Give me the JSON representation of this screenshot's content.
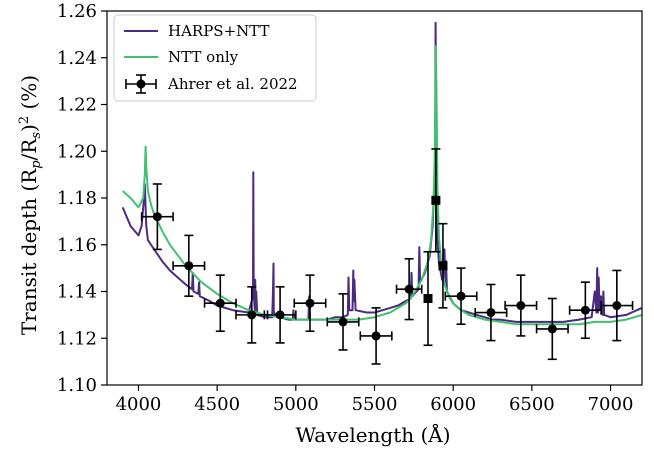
{
  "chart_data": {
    "type": "line",
    "xlabel": "Wavelength (Å)",
    "ylabel": "Transit depth (Rp/Rs)2 (%)",
    "ylabel_parts": {
      "prefix": "Transit depth (R",
      "sub_p": "p",
      "slash": "/R",
      "sub_s": "s",
      "close": ")",
      "sup": "2",
      "suffix": " (%)"
    },
    "xlim": [
      3800,
      7200
    ],
    "ylim": [
      1.1,
      1.26
    ],
    "xticks": [
      4000,
      4500,
      5000,
      5500,
      6000,
      6500,
      7000
    ],
    "yticks": [
      1.1,
      1.12,
      1.14,
      1.16,
      1.18,
      1.2,
      1.22,
      1.24,
      1.26
    ],
    "ytick_labels": [
      "1.10",
      "1.12",
      "1.14",
      "1.16",
      "1.18",
      "1.20",
      "1.22",
      "1.24",
      "1.26"
    ],
    "legend_position": "upper left",
    "series": [
      {
        "name": "HARPS+NTT",
        "kind": "line",
        "color": "#4b2a7f",
        "x": [
          3900,
          3950,
          4000,
          4020,
          4035,
          4040,
          4045,
          4050,
          4060,
          4100,
          4150,
          4200,
          4250,
          4300,
          4340,
          4345,
          4350,
          4380,
          4385,
          4390,
          4450,
          4500,
          4600,
          4700,
          4728,
          4730,
          4732,
          4740,
          4742,
          4745,
          4748,
          4755,
          4800,
          4850,
          4855,
          4858,
          4860,
          4900,
          4950,
          4980,
          4985,
          4990,
          5000,
          5050,
          5080,
          5085,
          5090,
          5100,
          5150,
          5200,
          5250,
          5300,
          5330,
          5335,
          5340,
          5360,
          5365,
          5368,
          5372,
          5380,
          5450,
          5500,
          5550,
          5600,
          5650,
          5700,
          5730,
          5735,
          5740,
          5780,
          5785,
          5790,
          5820,
          5850,
          5870,
          5885,
          5888,
          5892,
          5895,
          5900,
          5910,
          5930,
          5940,
          5945,
          5950,
          5955,
          5960,
          6000,
          6050,
          6100,
          6150,
          6200,
          6250,
          6300,
          6400,
          6500,
          6600,
          6700,
          6800,
          6880,
          6900,
          6910,
          6915,
          6920,
          6925,
          6930,
          6940,
          6950,
          6955,
          6960,
          7000,
          7100,
          7200
        ],
        "y": [
          1.176,
          1.168,
          1.164,
          1.168,
          1.18,
          1.186,
          1.176,
          1.168,
          1.162,
          1.158,
          1.153,
          1.149,
          1.146,
          1.143,
          1.141,
          1.148,
          1.14,
          1.139,
          1.144,
          1.138,
          1.136,
          1.134,
          1.132,
          1.131,
          1.138,
          1.191,
          1.14,
          1.131,
          1.145,
          1.133,
          1.14,
          1.13,
          1.129,
          1.129,
          1.14,
          1.152,
          1.131,
          1.129,
          1.128,
          1.128,
          1.132,
          1.128,
          1.128,
          1.128,
          1.128,
          1.138,
          1.128,
          1.128,
          1.128,
          1.128,
          1.129,
          1.129,
          1.13,
          1.146,
          1.132,
          1.132,
          1.149,
          1.136,
          1.145,
          1.132,
          1.131,
          1.131,
          1.132,
          1.133,
          1.134,
          1.136,
          1.137,
          1.148,
          1.138,
          1.141,
          1.159,
          1.144,
          1.148,
          1.155,
          1.168,
          1.196,
          1.255,
          1.22,
          1.175,
          1.162,
          1.152,
          1.145,
          1.148,
          1.158,
          1.144,
          1.153,
          1.14,
          1.135,
          1.132,
          1.131,
          1.13,
          1.129,
          1.128,
          1.128,
          1.127,
          1.127,
          1.127,
          1.127,
          1.128,
          1.129,
          1.14,
          1.131,
          1.15,
          1.131,
          1.146,
          1.132,
          1.138,
          1.13,
          1.14,
          1.13,
          1.129,
          1.13,
          1.133
        ]
      },
      {
        "name": "NTT only",
        "kind": "line",
        "color": "#3fc170",
        "x": [
          3900,
          3950,
          4000,
          4030,
          4040,
          4045,
          4050,
          4060,
          4080,
          4100,
          4150,
          4200,
          4300,
          4400,
          4500,
          4600,
          4700,
          4800,
          4900,
          5000,
          5100,
          5200,
          5300,
          5400,
          5500,
          5600,
          5700,
          5750,
          5800,
          5840,
          5860,
          5875,
          5885,
          5890,
          5895,
          5900,
          5910,
          5925,
          5950,
          5980,
          6000,
          6050,
          6100,
          6200,
          6300,
          6400,
          6500,
          6600,
          6700,
          6800,
          6900,
          7000,
          7100,
          7200
        ],
        "y": [
          1.183,
          1.18,
          1.176,
          1.18,
          1.19,
          1.202,
          1.193,
          1.183,
          1.177,
          1.173,
          1.166,
          1.16,
          1.151,
          1.144,
          1.139,
          1.135,
          1.132,
          1.13,
          1.129,
          1.128,
          1.128,
          1.128,
          1.128,
          1.128,
          1.129,
          1.131,
          1.135,
          1.139,
          1.145,
          1.153,
          1.162,
          1.178,
          1.205,
          1.245,
          1.218,
          1.184,
          1.163,
          1.151,
          1.142,
          1.137,
          1.135,
          1.132,
          1.13,
          1.128,
          1.127,
          1.126,
          1.126,
          1.126,
          1.126,
          1.126,
          1.127,
          1.127,
          1.128,
          1.13
        ]
      },
      {
        "name": "Ahrer et al. 2022",
        "kind": "errorbar",
        "color": "#000000",
        "points": [
          {
            "x": 4120,
            "y": 1.172,
            "xerr": 100,
            "yerr": 0.014
          },
          {
            "x": 4320,
            "y": 1.151,
            "xerr": 100,
            "yerr": 0.013
          },
          {
            "x": 4520,
            "y": 1.135,
            "xerr": 100,
            "yerr": 0.012
          },
          {
            "x": 4720,
            "y": 1.13,
            "xerr": 100,
            "yerr": 0.012
          },
          {
            "x": 4900,
            "y": 1.13,
            "xerr": 100,
            "yerr": 0.012
          },
          {
            "x": 5090,
            "y": 1.135,
            "xerr": 100,
            "yerr": 0.012
          },
          {
            "x": 5300,
            "y": 1.127,
            "xerr": 100,
            "yerr": 0.012
          },
          {
            "x": 5510,
            "y": 1.121,
            "xerr": 100,
            "yerr": 0.012
          },
          {
            "x": 5720,
            "y": 1.141,
            "xerr": 80,
            "yerr": 0.013
          },
          {
            "x": 5840,
            "y": 1.137,
            "xerr": 0,
            "yerr": 0.02,
            "marker": "square"
          },
          {
            "x": 5890,
            "y": 1.179,
            "xerr": 0,
            "yerr": 0.022,
            "marker": "square"
          },
          {
            "x": 5935,
            "y": 1.151,
            "xerr": 0,
            "yerr": 0.018,
            "marker": "square"
          },
          {
            "x": 6050,
            "y": 1.138,
            "xerr": 100,
            "yerr": 0.012
          },
          {
            "x": 6240,
            "y": 1.131,
            "xerr": 100,
            "yerr": 0.012
          },
          {
            "x": 6430,
            "y": 1.134,
            "xerr": 100,
            "yerr": 0.013
          },
          {
            "x": 6630,
            "y": 1.124,
            "xerr": 100,
            "yerr": 0.013
          },
          {
            "x": 6840,
            "y": 1.132,
            "xerr": 100,
            "yerr": 0.012
          },
          {
            "x": 7040,
            "y": 1.134,
            "xerr": 100,
            "yerr": 0.015
          }
        ]
      }
    ]
  }
}
